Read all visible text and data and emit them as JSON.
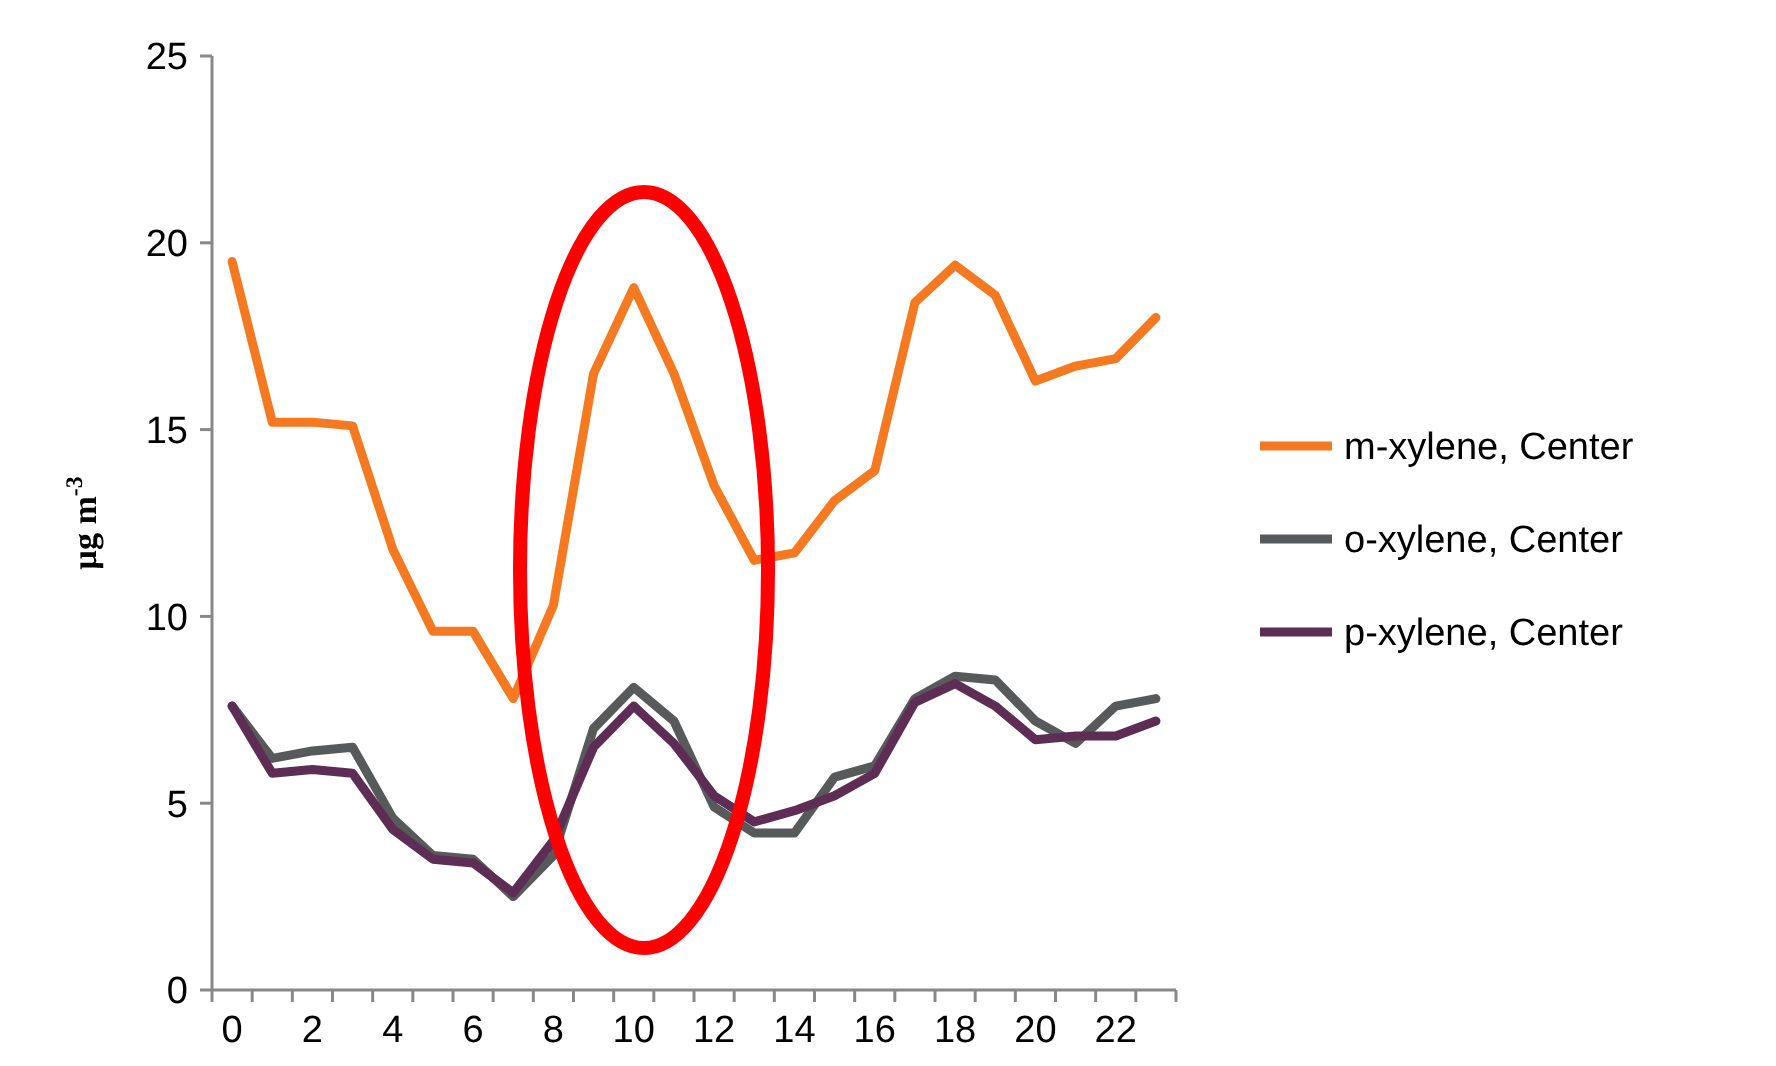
{
  "chart_data": {
    "type": "line",
    "ylabel": "µg m$^{-3}$",
    "categories": [
      "0",
      null,
      "2",
      null,
      "4",
      null,
      "6",
      null,
      "8",
      null,
      "10",
      null,
      "12",
      null,
      "14",
      null,
      "16",
      null,
      "18",
      null,
      "20",
      null,
      "22",
      null
    ],
    "ylim": [
      0,
      25
    ],
    "yticks": [
      0,
      5,
      10,
      15,
      20,
      25
    ],
    "legend": "right",
    "grid": false,
    "marker": "none",
    "line_style": "solid",
    "series": [
      {
        "name": "m-xylene, Center",
        "color": "#f47920",
        "values": [
          19.5,
          15.2,
          15.2,
          15.1,
          11.8,
          9.6,
          9.6,
          7.8,
          10.3,
          16.5,
          18.8,
          16.5,
          13.5,
          11.5,
          11.7,
          13.1,
          13.9,
          18.4,
          19.4,
          18.6,
          16.3,
          16.7,
          16.9,
          18.0
        ]
      },
      {
        "name": "o-xylene, Center",
        "color": "#58595b",
        "values": [
          7.6,
          6.2,
          6.4,
          6.5,
          4.6,
          3.6,
          3.5,
          2.5,
          3.6,
          7.0,
          8.1,
          7.2,
          4.9,
          4.2,
          4.2,
          5.7,
          6.0,
          7.8,
          8.4,
          8.3,
          7.2,
          6.6,
          7.6,
          7.8
        ]
      },
      {
        "name": "p-xylene, Center",
        "color": "#5e2d55",
        "values": [
          7.6,
          5.8,
          5.9,
          5.8,
          4.3,
          3.5,
          3.4,
          2.6,
          4.0,
          6.5,
          7.6,
          6.6,
          5.2,
          4.5,
          4.8,
          5.2,
          5.8,
          7.7,
          8.2,
          7.6,
          6.7,
          6.8,
          6.8,
          7.2
        ]
      }
    ]
  }
}
